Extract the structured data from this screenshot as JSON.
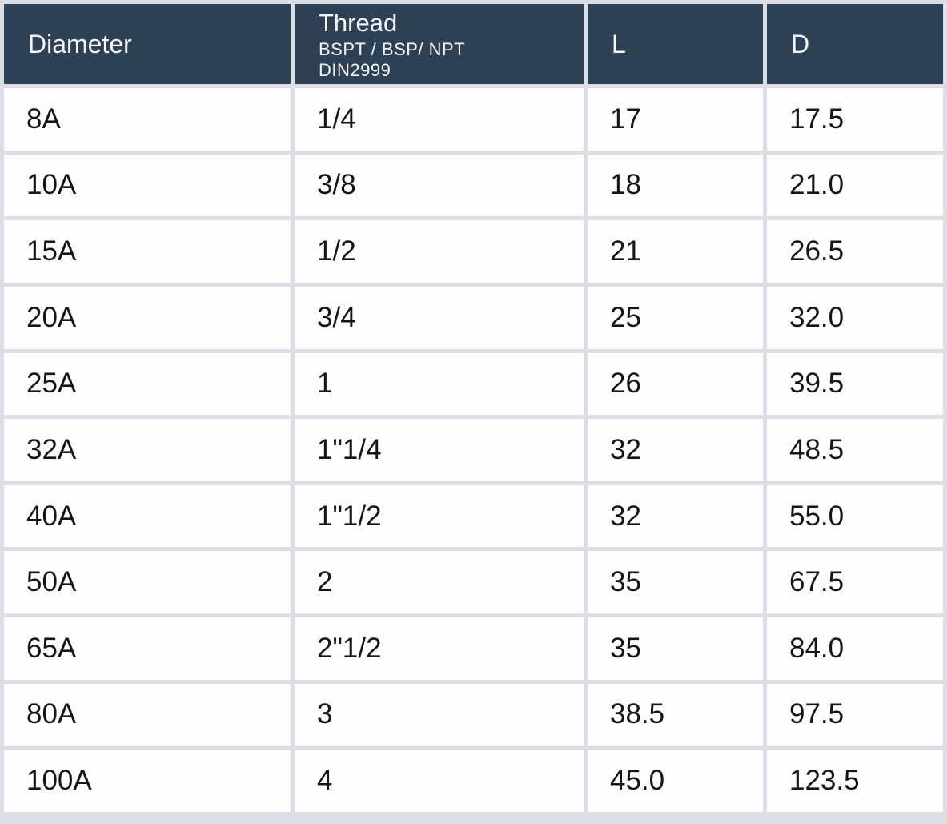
{
  "colors": {
    "header_bg": "#2e4154",
    "header_text": "#f5f6f8",
    "grid": "#dcdee3",
    "cell_bg": "#fdfdfe",
    "body_text": "#151515"
  },
  "table": {
    "columns": [
      {
        "key": "diameter",
        "label": "Diameter"
      },
      {
        "key": "thread",
        "label": "Thread",
        "sublines": [
          "BSPT / BSP/ NPT",
          "DIN2999"
        ]
      },
      {
        "key": "l",
        "label": "L"
      },
      {
        "key": "d",
        "label": "D"
      }
    ],
    "rows": [
      [
        "8A",
        "1/4",
        "17",
        "17.5"
      ],
      [
        "10A",
        "3/8",
        "18",
        "21.0"
      ],
      [
        "15A",
        "1/2",
        "21",
        "26.5"
      ],
      [
        "20A",
        "3/4",
        "25",
        "32.0"
      ],
      [
        "25A",
        "1",
        "26",
        "39.5"
      ],
      [
        "32A",
        "1\"1/4",
        "32",
        "48.5"
      ],
      [
        "40A",
        "1\"1/2",
        "32",
        "55.0"
      ],
      [
        "50A",
        "2",
        "35",
        "67.5"
      ],
      [
        "65A",
        "2\"1/2",
        "35",
        "84.0"
      ],
      [
        "80A",
        "3",
        "38.5",
        "97.5"
      ],
      [
        "100A",
        "4",
        "45.0",
        "123.5"
      ]
    ]
  }
}
